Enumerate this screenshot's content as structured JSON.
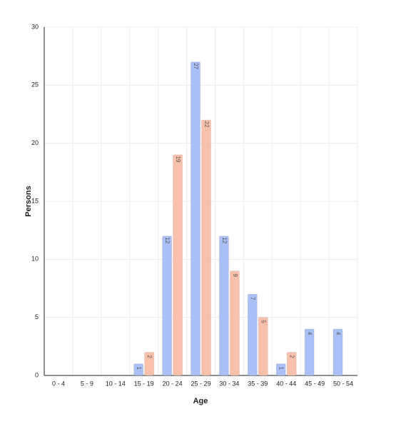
{
  "chart_data": {
    "type": "bar",
    "x_label": "Age",
    "y_label": "Persons",
    "categories": [
      "0 - 4",
      "5 - 9",
      "10 - 14",
      "15 - 19",
      "20 - 24",
      "25 - 29",
      "30 - 34",
      "35 - 39",
      "40 - 44",
      "45 - 49",
      "50 - 54"
    ],
    "series": [
      {
        "color": "#abc0f6",
        "values": [
          null,
          null,
          null,
          1,
          12,
          27,
          12,
          7,
          1,
          4,
          4
        ]
      },
      {
        "color": "#f9c1ab",
        "values": [
          null,
          null,
          null,
          2,
          19,
          22,
          9,
          5,
          2,
          null,
          null
        ]
      }
    ],
    "ylim": [
      0,
      30
    ],
    "yticks": [
      0,
      5,
      10,
      15,
      20,
      25,
      30
    ],
    "grid": true
  }
}
